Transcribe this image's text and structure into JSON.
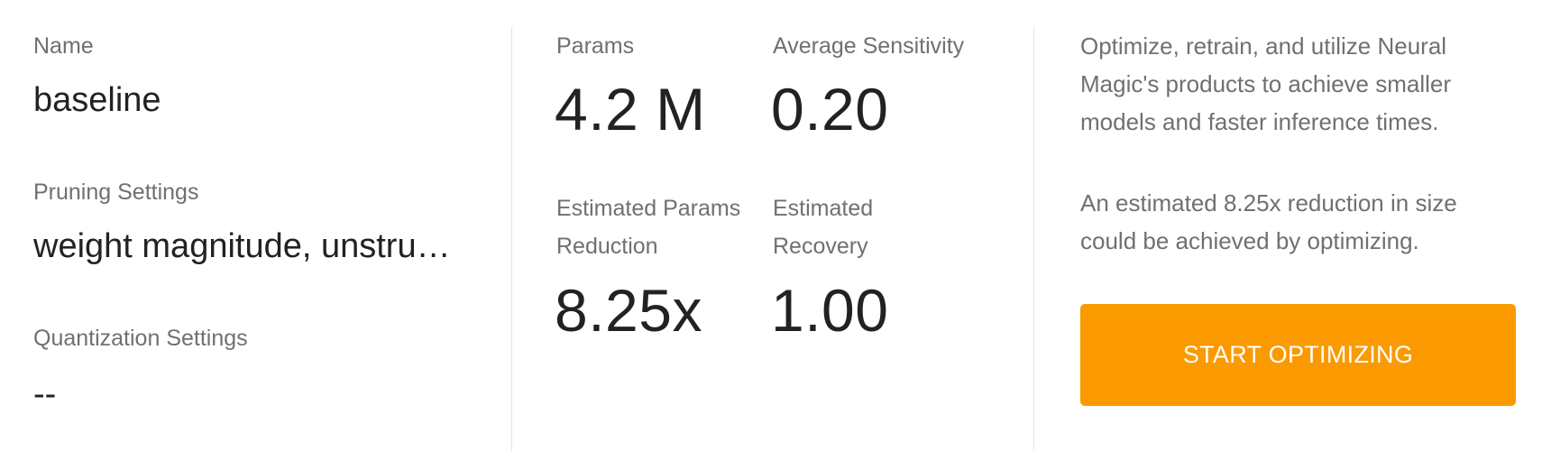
{
  "name": {
    "label": "Name",
    "value": "baseline"
  },
  "pruning": {
    "label": "Pruning Settings",
    "value": "weight magnitude, unstructured"
  },
  "quantization": {
    "label": "Quantization Settings",
    "value": "--"
  },
  "metrics": {
    "params": {
      "label": "Params",
      "value": "4.2 M"
    },
    "avg_sensitivity": {
      "label": "Average Sensitivity",
      "value": "0.20"
    },
    "est_params_reduction": {
      "label_line1": "Estimated Params",
      "label_line2": "Reduction",
      "value": "8.25x"
    },
    "est_recovery": {
      "label_line1": "Estimated",
      "label_line2": "Recovery",
      "value": "1.00"
    }
  },
  "info": {
    "paragraph1": "Optimize, retrain, and utilize Neural Magic's products to achieve smaller models and faster inference times.",
    "paragraph2": "An estimated 8.25x reduction in size could be achieved by optimizing."
  },
  "cta": {
    "label": "START OPTIMIZING",
    "color": "#fa9a00"
  }
}
